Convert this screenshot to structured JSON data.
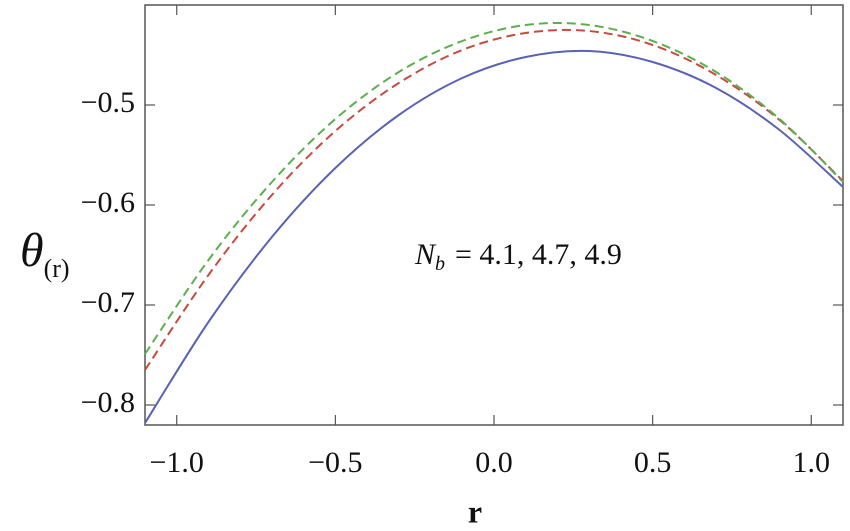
{
  "chart_data": {
    "type": "line",
    "xlabel": "r",
    "ylabel": {
      "symbol": "θ",
      "subscript": "(r)"
    },
    "annotation": {
      "symbol": "N",
      "subscript": "b",
      "text": "= 4.1, 4.7, 4.9"
    },
    "x": [
      -1.1,
      -0.9,
      -0.7,
      -0.5,
      -0.3,
      -0.1,
      0.1,
      0.3,
      0.5,
      0.7,
      0.9,
      1.1
    ],
    "series": [
      {
        "color": "#5a62b4",
        "dashed": false,
        "values": [
          -0.818,
          -0.717,
          -0.632,
          -0.563,
          -0.51,
          -0.473,
          -0.452,
          -0.446,
          -0.457,
          -0.483,
          -0.525,
          -0.582
        ]
      },
      {
        "color": "#c84a3f",
        "dashed": true,
        "values": [
          -0.765,
          -0.67,
          -0.59,
          -0.526,
          -0.478,
          -0.445,
          -0.428,
          -0.426,
          -0.44,
          -0.47,
          -0.515,
          -0.576
        ]
      },
      {
        "color": "#5caf4f",
        "dashed": true,
        "values": [
          -0.749,
          -0.655,
          -0.577,
          -0.514,
          -0.467,
          -0.436,
          -0.42,
          -0.42,
          -0.436,
          -0.467,
          -0.514,
          -0.577
        ]
      }
    ],
    "xlim": [
      -1.1,
      1.1
    ],
    "ylim": [
      -0.82,
      -0.4
    ],
    "xticks": [
      {
        "value": -1,
        "label": "−1.0"
      },
      {
        "value": -0.5,
        "label": "−0.5"
      },
      {
        "value": 0,
        "label": "0.0"
      },
      0.5,
      {
        "value": 1,
        "label": "1.0"
      }
    ],
    "yticks": [
      {
        "value": -0.8,
        "label": "−0.8"
      },
      {
        "value": -0.7,
        "label": "−0.7"
      },
      {
        "value": -0.6,
        "label": "−0.6"
      },
      {
        "value": -0.5,
        "label": "−0.5"
      }
    ],
    "grid": false
  }
}
